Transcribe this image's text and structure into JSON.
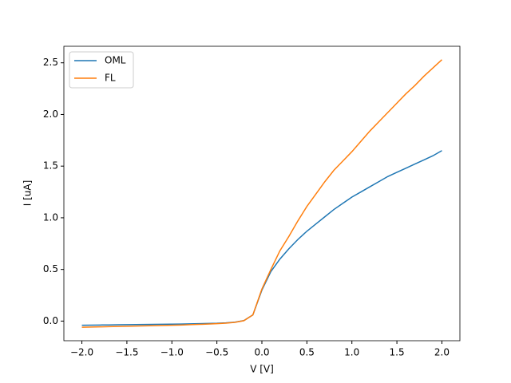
{
  "chart_data": {
    "type": "line",
    "xlabel": "V [V]",
    "ylabel": "I [uA]",
    "x": [
      -2.0,
      -1.9,
      -1.8,
      -1.7,
      -1.6,
      -1.5,
      -1.4,
      -1.3,
      -1.2,
      -1.1,
      -1.0,
      -0.9,
      -0.8,
      -0.7,
      -0.6,
      -0.5,
      -0.4,
      -0.3,
      -0.2,
      -0.1,
      0.0,
      0.1,
      0.2,
      0.3,
      0.4,
      0.5,
      0.6,
      0.7,
      0.8,
      0.9,
      1.0,
      1.1,
      1.2,
      1.3,
      1.4,
      1.5,
      1.6,
      1.7,
      1.8,
      1.9,
      2.0
    ],
    "series": [
      {
        "name": "OML",
        "color": "#1f77b4",
        "values": [
          -0.04,
          -0.039,
          -0.038,
          -0.037,
          -0.036,
          -0.035,
          -0.034,
          -0.033,
          -0.032,
          -0.031,
          -0.03,
          -0.029,
          -0.027,
          -0.025,
          -0.023,
          -0.021,
          -0.017,
          -0.01,
          0.005,
          0.06,
          0.3,
          0.48,
          0.6,
          0.7,
          0.79,
          0.87,
          0.94,
          1.01,
          1.08,
          1.14,
          1.2,
          1.25,
          1.3,
          1.35,
          1.4,
          1.44,
          1.48,
          1.52,
          1.56,
          1.6,
          1.65
        ]
      },
      {
        "name": "FL",
        "color": "#ff7f0e",
        "values": [
          -0.06,
          -0.058,
          -0.056,
          -0.054,
          -0.052,
          -0.05,
          -0.048,
          -0.046,
          -0.044,
          -0.042,
          -0.04,
          -0.038,
          -0.035,
          -0.032,
          -0.029,
          -0.025,
          -0.02,
          -0.012,
          0.004,
          0.06,
          0.31,
          0.5,
          0.68,
          0.82,
          0.97,
          1.11,
          1.23,
          1.35,
          1.46,
          1.55,
          1.64,
          1.74,
          1.84,
          1.93,
          2.02,
          2.11,
          2.2,
          2.28,
          2.37,
          2.45,
          2.53
        ]
      }
    ],
    "xlim": [
      -2.2,
      2.2
    ],
    "xticks": [
      {
        "value": -2.0,
        "label": "−2.0"
      },
      {
        "value": -1.5,
        "label": "−1.5"
      },
      {
        "value": -1.0,
        "label": "−1.0"
      },
      {
        "value": -0.5,
        "label": "−0.5"
      },
      {
        "value": 0,
        "label": "0.0"
      },
      0.5,
      {
        "value": 1,
        "label": "1.0"
      },
      1.5,
      {
        "value": 2,
        "label": "2.0"
      }
    ],
    "ylim": [
      -0.19,
      2.66
    ],
    "yticks": [
      {
        "value": 0,
        "label": "0.0"
      },
      0.5,
      {
        "value": 1,
        "label": "1.0"
      },
      1.5,
      {
        "value": 2,
        "label": "2.0"
      },
      2.5
    ],
    "legend": "upper left"
  }
}
